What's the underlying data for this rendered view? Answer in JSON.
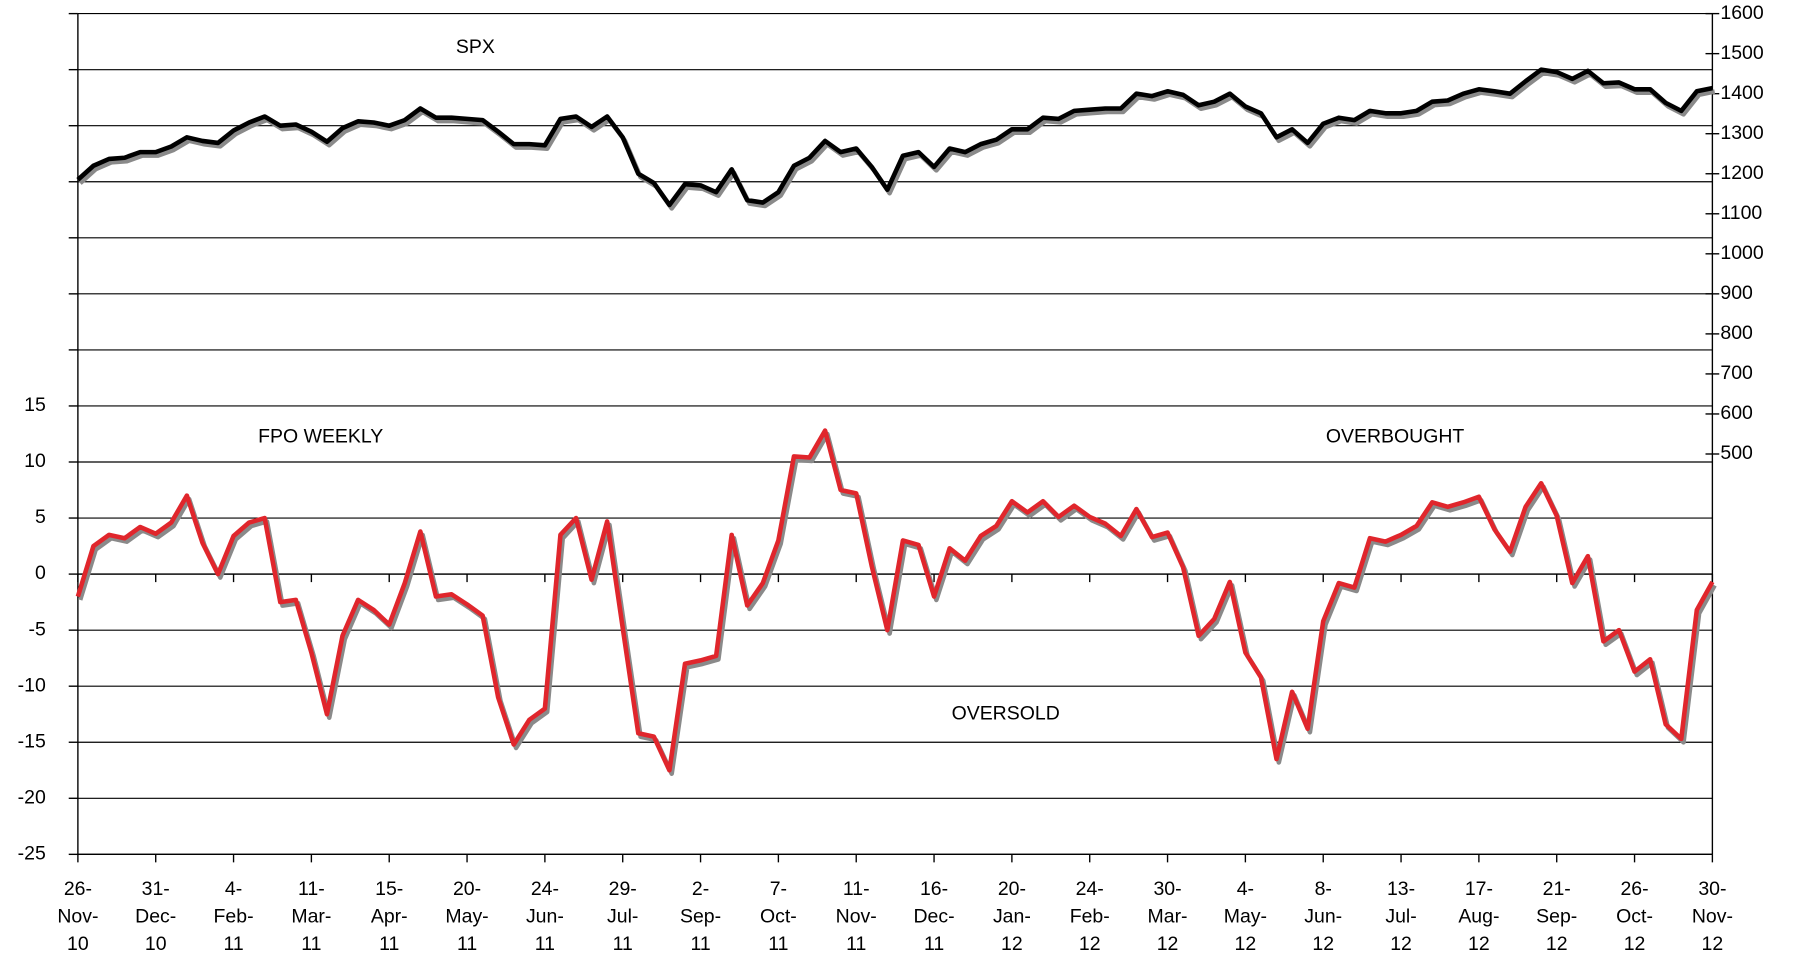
{
  "chart_data": {
    "type": "line",
    "annotations": [
      "SPX",
      "FPO WEEKLY",
      "OVERBOUGHT",
      "OVERSOLD"
    ],
    "categories": [
      "26-Nov-10",
      null,
      null,
      null,
      null,
      "31-Dec-10",
      null,
      null,
      null,
      null,
      "4-Feb-11",
      null,
      null,
      null,
      null,
      "11-Mar-11",
      null,
      null,
      null,
      null,
      "15-Apr-11",
      null,
      null,
      null,
      null,
      "20-May-11",
      null,
      null,
      null,
      null,
      "24-Jun-11",
      null,
      null,
      null,
      null,
      "29-Jul-11",
      null,
      null,
      null,
      null,
      "2-Sep-11",
      null,
      null,
      null,
      null,
      "7-Oct-11",
      null,
      null,
      null,
      null,
      "11-Nov-11",
      null,
      null,
      null,
      null,
      "16-Dec-11",
      null,
      null,
      null,
      null,
      "20-Jan-12",
      null,
      null,
      null,
      null,
      "24-Feb-12",
      null,
      null,
      null,
      null,
      "30-Mar-12",
      null,
      null,
      null,
      null,
      "4-May-12",
      null,
      null,
      null,
      null,
      "8-Jun-12",
      null,
      null,
      null,
      null,
      "13-Jul-12",
      null,
      null,
      null,
      null,
      "17-Aug-12",
      null,
      null,
      null,
      null,
      "21-Sep-12",
      null,
      null,
      null,
      null,
      "26-Oct-12",
      null,
      null,
      null,
      null,
      "30-Nov-12"
    ],
    "series": [
      {
        "name": "FPO WEEKLY",
        "color": "#e0262c",
        "axis": "y",
        "values": [
          -2,
          2.5,
          3.5,
          3.2,
          4.2,
          3.6,
          4.6,
          7,
          2.8,
          0,
          3.4,
          4.6,
          5,
          -2.5,
          -2.3,
          -7,
          -12.5,
          -5.5,
          -2.3,
          -3.2,
          -4.5,
          -0.8,
          3.8,
          -2,
          -1.8,
          -2.7,
          -3.7,
          -11,
          -15.2,
          -13,
          -12,
          3.5,
          5,
          -0.5,
          4.7,
          -4.8,
          -14.2,
          -14.5,
          -17.5,
          -8,
          -7.7,
          -7.3,
          3.5,
          -2.8,
          -0.8,
          3,
          10.5,
          10.4,
          12.8,
          7.5,
          7.2,
          0.7,
          -5,
          3,
          2.6,
          -2,
          2.3,
          1.2,
          3.4,
          4.3,
          6.5,
          5.5,
          6.5,
          5.1,
          6.1,
          5.1,
          4.5,
          3.4,
          5.8,
          3.3,
          3.7,
          0.6,
          -5.5,
          -4,
          -0.7,
          -7,
          -9.2,
          -16.5,
          -10.5,
          -13.8,
          -4.2,
          -0.8,
          -1.2,
          3.2,
          2.9,
          3.5,
          4.3,
          6.4,
          6,
          6.4,
          6.9,
          4,
          2,
          6,
          8.1,
          5.2,
          -0.8,
          1.6,
          -6,
          -5,
          -8.7,
          -7.6,
          -13.4,
          -14.7,
          -3.2,
          -0.7
        ]
      },
      {
        "name": "SPX",
        "color": "#000000",
        "axis": "y2",
        "values": [
          1185,
          1220,
          1237,
          1240,
          1254,
          1254,
          1268,
          1291,
          1282,
          1277,
          1308,
          1328,
          1343,
          1320,
          1323,
          1305,
          1280,
          1314,
          1331,
          1328,
          1320,
          1334,
          1363,
          1340,
          1340,
          1337,
          1334,
          1305,
          1274,
          1274,
          1271,
          1337,
          1343,
          1317,
          1343,
          1291,
          1200,
          1177,
          1122,
          1174,
          1171,
          1154,
          1211,
          1134,
          1128,
          1154,
          1220,
          1240,
          1282,
          1254,
          1263,
          1217,
          1160,
          1245,
          1254,
          1217,
          1263,
          1254,
          1274,
          1285,
          1311,
          1311,
          1340,
          1337,
          1357,
          1360,
          1363,
          1363,
          1400,
          1394,
          1406,
          1397,
          1371,
          1380,
          1400,
          1368,
          1351,
          1291,
          1311,
          1277,
          1325,
          1340,
          1334,
          1357,
          1351,
          1351,
          1357,
          1380,
          1383,
          1400,
          1411,
          1406,
          1400,
          1431,
          1460,
          1454,
          1437,
          1457,
          1426,
          1428,
          1411,
          1411,
          1377,
          1357,
          1406,
          1414
        ]
      }
    ],
    "ylim": [
      -25,
      50
    ],
    "yticks": [
      -25,
      -20,
      -15,
      -10,
      -5,
      0,
      5,
      10,
      15
    ],
    "y2lim": [
      -500,
      1600
    ],
    "y2ticks": [
      500,
      600,
      700,
      800,
      900,
      1000,
      1100,
      1200,
      1300,
      1400,
      1500,
      1600
    ],
    "grid": true
  }
}
